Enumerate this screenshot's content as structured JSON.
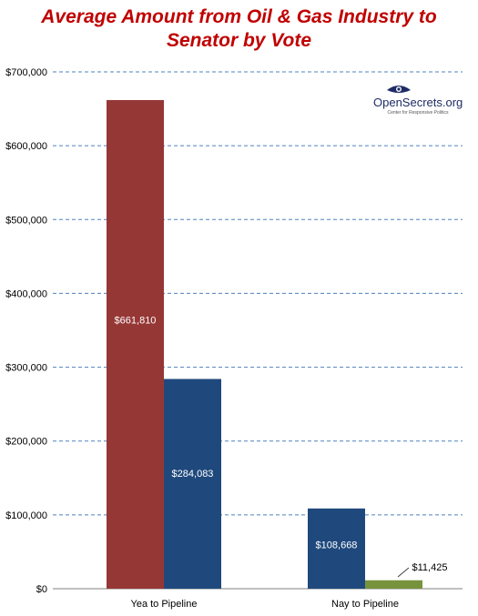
{
  "chart_data": {
    "type": "bar",
    "title_line1": "Average Amount from Oil & Gas Industry to",
    "title_line2": "Senator by Vote",
    "categories": [
      "Yea to Pipeline",
      "Nay to Pipeline"
    ],
    "series": [
      {
        "values": [
          661810,
          null
        ],
        "color": "#953735"
      },
      {
        "values": [
          284083,
          108668
        ],
        "color": "#1f497d"
      },
      {
        "values": [
          null,
          11425
        ],
        "color": "#77933c"
      }
    ],
    "data_labels": [
      "$661,810",
      "$284,083",
      "$108,668",
      "$11,425"
    ],
    "y_ticks": [
      "$0",
      "$100,000",
      "$200,000",
      "$300,000",
      "$400,000",
      "$500,000",
      "$600,000",
      "$700,000"
    ],
    "ylim": [
      0,
      700000
    ],
    "grid": true,
    "grid_style": "dashed",
    "xlabel": "",
    "ylabel": ""
  },
  "logo": {
    "name": "OpenSecrets.org",
    "tagline": "Center for Responsive Politics",
    "icon": "eye-icon"
  },
  "colors": {
    "title": "#c00000",
    "grid": "#4f81bd",
    "axis": "#808080"
  }
}
